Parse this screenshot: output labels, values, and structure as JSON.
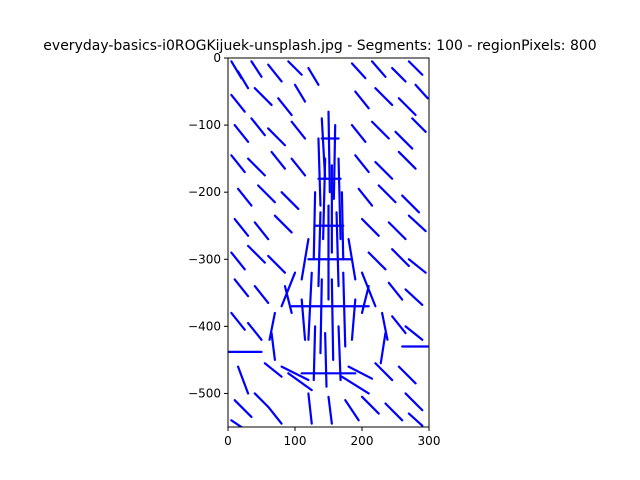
{
  "chart_data": {
    "type": "line",
    "title": "everyday-basics-i0ROGKijuek-unsplash.jpg - Segments: 100 - regionPixels: 800",
    "xlabel": "",
    "ylabel": "",
    "xlim": [
      0,
      300
    ],
    "ylim": [
      -550,
      0
    ],
    "x_ticks": [
      0,
      100,
      200,
      300
    ],
    "y_ticks": [
      0,
      -100,
      -200,
      -300,
      -400,
      -500
    ],
    "grid": false,
    "series_color": "#0000ff",
    "background_segments": [
      [
        [
          5,
          -5
        ],
        [
          20,
          -30
        ]
      ],
      [
        [
          15,
          -20
        ],
        [
          30,
          -45
        ]
      ],
      [
        [
          35,
          -5
        ],
        [
          50,
          -28
        ]
      ],
      [
        [
          60,
          -10
        ],
        [
          80,
          -35
        ]
      ],
      [
        [
          90,
          -5
        ],
        [
          110,
          -25
        ]
      ],
      [
        [
          120,
          -15
        ],
        [
          135,
          -40
        ]
      ],
      [
        [
          185,
          -8
        ],
        [
          205,
          -30
        ]
      ],
      [
        [
          215,
          -5
        ],
        [
          235,
          -28
        ]
      ],
      [
        [
          245,
          -15
        ],
        [
          265,
          -35
        ]
      ],
      [
        [
          270,
          -5
        ],
        [
          290,
          -25
        ]
      ],
      [
        [
          5,
          -55
        ],
        [
          25,
          -80
        ]
      ],
      [
        [
          40,
          -45
        ],
        [
          65,
          -70
        ]
      ],
      [
        [
          75,
          -60
        ],
        [
          95,
          -85
        ]
      ],
      [
        [
          100,
          -40
        ],
        [
          115,
          -65
        ]
      ],
      [
        [
          190,
          -50
        ],
        [
          210,
          -75
        ]
      ],
      [
        [
          220,
          -45
        ],
        [
          245,
          -70
        ]
      ],
      [
        [
          255,
          -60
        ],
        [
          280,
          -85
        ]
      ],
      [
        [
          280,
          -40
        ],
        [
          298,
          -60
        ]
      ],
      [
        [
          10,
          -100
        ],
        [
          30,
          -125
        ]
      ],
      [
        [
          35,
          -90
        ],
        [
          55,
          -115
        ]
      ],
      [
        [
          60,
          -105
        ],
        [
          85,
          -130
        ]
      ],
      [
        [
          95,
          -95
        ],
        [
          115,
          -120
        ]
      ],
      [
        [
          185,
          -100
        ],
        [
          205,
          -125
        ]
      ],
      [
        [
          215,
          -95
        ],
        [
          240,
          -120
        ]
      ],
      [
        [
          250,
          -110
        ],
        [
          275,
          -135
        ]
      ],
      [
        [
          275,
          -90
        ],
        [
          295,
          -110
        ]
      ],
      [
        [
          5,
          -145
        ],
        [
          25,
          -170
        ]
      ],
      [
        [
          30,
          -150
        ],
        [
          55,
          -175
        ]
      ],
      [
        [
          65,
          -140
        ],
        [
          85,
          -165
        ]
      ],
      [
        [
          95,
          -150
        ],
        [
          115,
          -175
        ]
      ],
      [
        [
          190,
          -145
        ],
        [
          210,
          -170
        ]
      ],
      [
        [
          220,
          -155
        ],
        [
          245,
          -180
        ]
      ],
      [
        [
          255,
          -140
        ],
        [
          280,
          -165
        ]
      ],
      [
        [
          15,
          -195
        ],
        [
          35,
          -220
        ]
      ],
      [
        [
          45,
          -190
        ],
        [
          70,
          -215
        ]
      ],
      [
        [
          80,
          -200
        ],
        [
          105,
          -225
        ]
      ],
      [
        [
          195,
          -195
        ],
        [
          215,
          -220
        ]
      ],
      [
        [
          225,
          -190
        ],
        [
          250,
          -215
        ]
      ],
      [
        [
          260,
          -205
        ],
        [
          285,
          -230
        ]
      ],
      [
        [
          10,
          -240
        ],
        [
          30,
          -265
        ]
      ],
      [
        [
          40,
          -245
        ],
        [
          60,
          -270
        ]
      ],
      [
        [
          70,
          -235
        ],
        [
          95,
          -260
        ]
      ],
      [
        [
          200,
          -240
        ],
        [
          225,
          -265
        ]
      ],
      [
        [
          240,
          -245
        ],
        [
          265,
          -270
        ]
      ],
      [
        [
          270,
          -235
        ],
        [
          295,
          -258
        ]
      ],
      [
        [
          5,
          -290
        ],
        [
          25,
          -315
        ]
      ],
      [
        [
          30,
          -280
        ],
        [
          55,
          -305
        ]
      ],
      [
        [
          60,
          -295
        ],
        [
          85,
          -320
        ]
      ],
      [
        [
          210,
          -290
        ],
        [
          235,
          -315
        ]
      ],
      [
        [
          245,
          -285
        ],
        [
          270,
          -310
        ]
      ],
      [
        [
          270,
          -300
        ],
        [
          295,
          -320
        ]
      ],
      [
        [
          10,
          -330
        ],
        [
          30,
          -355
        ]
      ],
      [
        [
          40,
          -340
        ],
        [
          60,
          -365
        ]
      ],
      [
        [
          240,
          -335
        ],
        [
          260,
          -360
        ]
      ],
      [
        [
          265,
          -345
        ],
        [
          290,
          -368
        ]
      ],
      [
        [
          5,
          -380
        ],
        [
          25,
          -405
        ]
      ],
      [
        [
          30,
          -395
        ],
        [
          50,
          -420
        ]
      ],
      [
        [
          245,
          -385
        ],
        [
          265,
          -410
        ]
      ],
      [
        [
          265,
          -400
        ],
        [
          290,
          -420
        ]
      ],
      [
        [
          0,
          -438
        ],
        [
          50,
          -438
        ]
      ],
      [
        [
          260,
          -430
        ],
        [
          298,
          -430
        ]
      ],
      [
        [
          15,
          -460
        ],
        [
          30,
          -500
        ]
      ],
      [
        [
          55,
          -455
        ],
        [
          80,
          -475
        ]
      ],
      [
        [
          220,
          -455
        ],
        [
          245,
          -480
        ]
      ],
      [
        [
          255,
          -460
        ],
        [
          280,
          -485
        ]
      ],
      [
        [
          10,
          -510
        ],
        [
          35,
          -535
        ]
      ],
      [
        [
          40,
          -500
        ],
        [
          60,
          -520
        ]
      ],
      [
        [
          200,
          -505
        ],
        [
          225,
          -530
        ]
      ],
      [
        [
          235,
          -515
        ],
        [
          260,
          -540
        ]
      ],
      [
        [
          265,
          -500
        ],
        [
          290,
          -525
        ]
      ],
      [
        [
          5,
          -540
        ],
        [
          20,
          -550
        ]
      ],
      [
        [
          60,
          -520
        ],
        [
          80,
          -545
        ]
      ],
      [
        [
          120,
          -500
        ],
        [
          125,
          -545
        ]
      ],
      [
        [
          150,
          -505
        ],
        [
          155,
          -545
        ]
      ],
      [
        [
          175,
          -510
        ],
        [
          195,
          -540
        ]
      ],
      [
        [
          270,
          -530
        ],
        [
          290,
          -548
        ]
      ]
    ],
    "object_segments": [
      [
        [
          140,
          -90
        ],
        [
          145,
          -180
        ]
      ],
      [
        [
          150,
          -80
        ],
        [
          152,
          -200
        ]
      ],
      [
        [
          160,
          -100
        ],
        [
          158,
          -210
        ]
      ],
      [
        [
          135,
          -120
        ],
        [
          138,
          -220
        ]
      ],
      [
        [
          145,
          -150
        ],
        [
          142,
          -270
        ]
      ],
      [
        [
          155,
          -160
        ],
        [
          155,
          -290
        ]
      ],
      [
        [
          165,
          -150
        ],
        [
          168,
          -270
        ]
      ],
      [
        [
          130,
          -200
        ],
        [
          128,
          -300
        ]
      ],
      [
        [
          170,
          -200
        ],
        [
          172,
          -300
        ]
      ],
      [
        [
          138,
          -230
        ],
        [
          135,
          -340
        ]
      ],
      [
        [
          150,
          -220
        ],
        [
          150,
          -360
        ]
      ],
      [
        [
          162,
          -230
        ],
        [
          165,
          -340
        ]
      ],
      [
        [
          120,
          -270
        ],
        [
          110,
          -330
        ]
      ],
      [
        [
          180,
          -270
        ],
        [
          190,
          -330
        ]
      ],
      [
        [
          100,
          -320
        ],
        [
          80,
          -370
        ]
      ],
      [
        [
          200,
          -320
        ],
        [
          220,
          -370
        ]
      ],
      [
        [
          85,
          -340
        ],
        [
          95,
          -380
        ]
      ],
      [
        [
          210,
          -340
        ],
        [
          200,
          -380
        ]
      ],
      [
        [
          125,
          -320
        ],
        [
          120,
          -420
        ]
      ],
      [
        [
          140,
          -330
        ],
        [
          138,
          -440
        ]
      ],
      [
        [
          155,
          -330
        ],
        [
          157,
          -450
        ]
      ],
      [
        [
          172,
          -320
        ],
        [
          175,
          -430
        ]
      ],
      [
        [
          130,
          -400
        ],
        [
          128,
          -480
        ]
      ],
      [
        [
          145,
          -410
        ],
        [
          147,
          -490
        ]
      ],
      [
        [
          165,
          -400
        ],
        [
          168,
          -480
        ]
      ],
      [
        [
          110,
          -360
        ],
        [
          115,
          -420
        ]
      ],
      [
        [
          190,
          -360
        ],
        [
          185,
          -420
        ]
      ],
      [
        [
          70,
          -380
        ],
        [
          62,
          -420
        ]
      ],
      [
        [
          230,
          -380
        ],
        [
          238,
          -420
        ]
      ],
      [
        [
          65,
          -410
        ],
        [
          70,
          -450
        ]
      ],
      [
        [
          235,
          -410
        ],
        [
          228,
          -455
        ]
      ],
      [
        [
          80,
          -460
        ],
        [
          120,
          -480
        ]
      ],
      [
        [
          180,
          -460
        ],
        [
          215,
          -478
        ]
      ],
      [
        [
          90,
          -470
        ],
        [
          125,
          -495
        ]
      ],
      [
        [
          170,
          -475
        ],
        [
          210,
          -500
        ]
      ],
      [
        [
          110,
          -470
        ],
        [
          190,
          -470
        ]
      ],
      [
        [
          120,
          -300
        ],
        [
          185,
          -300
        ]
      ],
      [
        [
          95,
          -370
        ],
        [
          210,
          -370
        ]
      ],
      [
        [
          140,
          -120
        ],
        [
          165,
          -120
        ]
      ],
      [
        [
          135,
          -180
        ],
        [
          168,
          -180
        ]
      ],
      [
        [
          130,
          -250
        ],
        [
          172,
          -250
        ]
      ]
    ]
  }
}
